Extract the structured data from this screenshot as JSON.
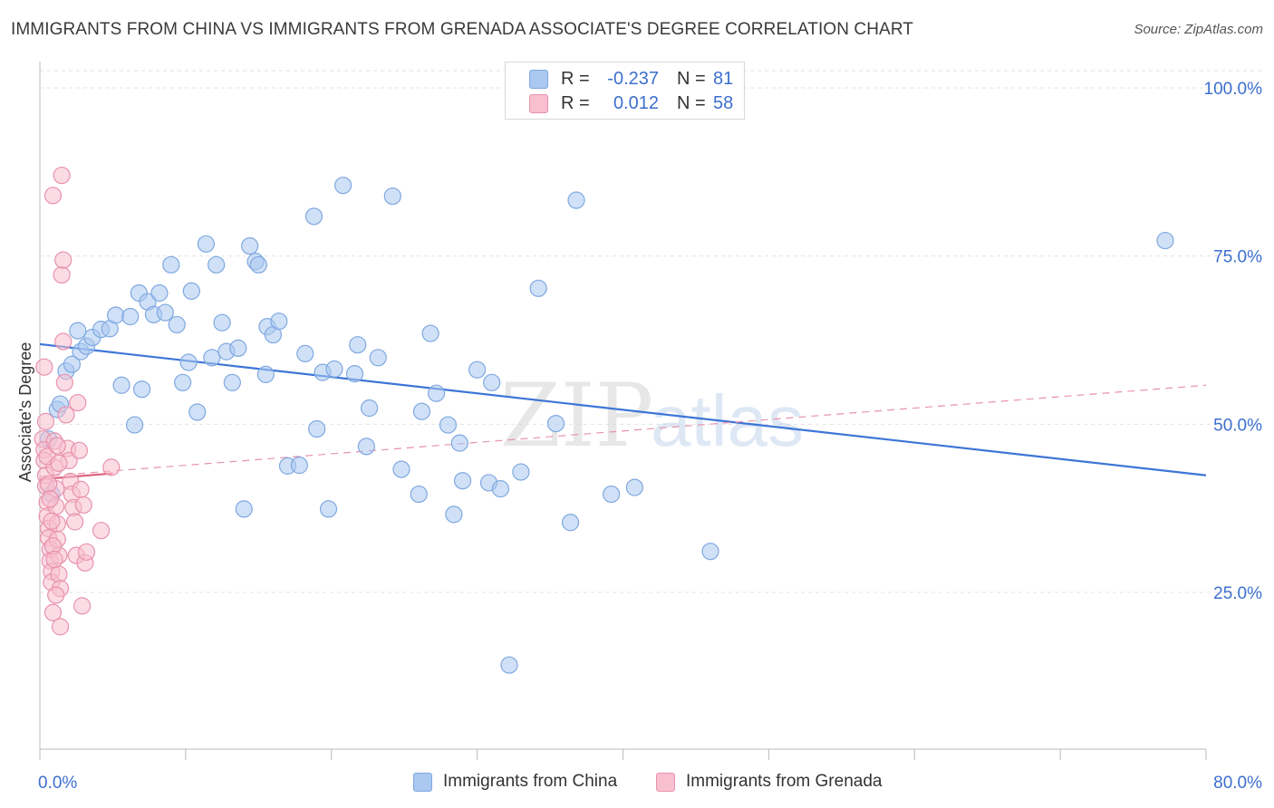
{
  "title": "IMMIGRANTS FROM CHINA VS IMMIGRANTS FROM GRENADA ASSOCIATE'S DEGREE CORRELATION CHART",
  "source": "Source: ZipAtlas.com",
  "watermark": {
    "zip": "ZIP",
    "atlas": "atlas"
  },
  "legend": {
    "rows": [
      {
        "r_label": "R =",
        "r_value": "-0.237",
        "n_label": "N =",
        "n_value": "81",
        "color": "#aac8f0",
        "border": "#7fa8e0"
      },
      {
        "r_label": "R =",
        "r_value": "0.012",
        "n_label": "N =",
        "n_value": "58",
        "color": "#f8bfd0",
        "border": "#e892ad"
      }
    ]
  },
  "bottom_legend": {
    "items": [
      {
        "label": "Immigrants from China",
        "color": "#aac8f0",
        "border": "#7fa8e0"
      },
      {
        "label": "Immigrants from Grenada",
        "color": "#f8bfd0",
        "border": "#e892ad"
      }
    ]
  },
  "chart_data": {
    "type": "scatter",
    "title": "IMMIGRANTS FROM CHINA VS IMMIGRANTS FROM GRENADA ASSOCIATE'S DEGREE CORRELATION CHART",
    "xlabel": "",
    "ylabel": "Associate's Degree",
    "xlim": [
      0,
      80
    ],
    "ylim": [
      0,
      105
    ],
    "x_tick_labels": [
      {
        "value": 0,
        "label": "0.0%"
      },
      {
        "value": 80,
        "label": "80.0%"
      }
    ],
    "y_tick_labels": [
      {
        "value": 100,
        "label": "100.0%"
      },
      {
        "value": 75,
        "label": "75.0%"
      },
      {
        "value": 50,
        "label": "50.0%"
      },
      {
        "value": 25,
        "label": "25.0%"
      }
    ],
    "grid": true,
    "series": [
      {
        "name": "Immigrants from China",
        "color": "#aac8f0",
        "stroke": "#7fa8e0",
        "trend": {
          "x": [
            0,
            80
          ],
          "y": [
            61.9,
            42.4
          ],
          "color": "#3d75d6",
          "style": "solid"
        },
        "points": [
          [
            0.6,
            47.8
          ],
          [
            0.8,
            39.6
          ],
          [
            1.2,
            52.2
          ],
          [
            1.4,
            53.0
          ],
          [
            1.8,
            57.9
          ],
          [
            2.2,
            58.9
          ],
          [
            2.6,
            63.9
          ],
          [
            2.8,
            60.8
          ],
          [
            3.2,
            61.6
          ],
          [
            3.6,
            62.9
          ],
          [
            4.2,
            64.1
          ],
          [
            4.8,
            64.2
          ],
          [
            5.2,
            66.2
          ],
          [
            5.6,
            55.8
          ],
          [
            6.2,
            66.0
          ],
          [
            6.5,
            49.9
          ],
          [
            6.8,
            69.5
          ],
          [
            7.0,
            55.2
          ],
          [
            7.4,
            68.2
          ],
          [
            7.8,
            66.3
          ],
          [
            8.2,
            69.5
          ],
          [
            8.6,
            66.6
          ],
          [
            9.0,
            73.7
          ],
          [
            9.4,
            64.8
          ],
          [
            9.8,
            56.2
          ],
          [
            10.2,
            59.2
          ],
          [
            10.4,
            69.8
          ],
          [
            10.8,
            51.8
          ],
          [
            11.4,
            76.8
          ],
          [
            11.8,
            59.9
          ],
          [
            12.1,
            73.7
          ],
          [
            12.5,
            65.1
          ],
          [
            12.8,
            60.8
          ],
          [
            13.2,
            56.2
          ],
          [
            13.6,
            61.3
          ],
          [
            14.0,
            37.4
          ],
          [
            14.4,
            76.5
          ],
          [
            14.8,
            74.2
          ],
          [
            15.0,
            73.7
          ],
          [
            15.5,
            57.4
          ],
          [
            15.6,
            64.5
          ],
          [
            16.0,
            63.3
          ],
          [
            16.4,
            65.3
          ],
          [
            17.0,
            43.8
          ],
          [
            17.8,
            43.9
          ],
          [
            18.2,
            60.5
          ],
          [
            18.8,
            80.9
          ],
          [
            19.0,
            49.3
          ],
          [
            19.4,
            57.7
          ],
          [
            19.8,
            37.4
          ],
          [
            20.2,
            58.2
          ],
          [
            20.8,
            85.5
          ],
          [
            21.6,
            57.5
          ],
          [
            21.8,
            61.8
          ],
          [
            22.6,
            52.4
          ],
          [
            22.4,
            46.7
          ],
          [
            23.2,
            59.9
          ],
          [
            24.2,
            83.9
          ],
          [
            24.8,
            43.3
          ],
          [
            26.0,
            39.6
          ],
          [
            26.2,
            51.9
          ],
          [
            26.8,
            63.5
          ],
          [
            27.2,
            54.6
          ],
          [
            28.0,
            49.9
          ],
          [
            28.4,
            36.6
          ],
          [
            28.8,
            47.2
          ],
          [
            29.0,
            41.6
          ],
          [
            30.0,
            58.1
          ],
          [
            30.8,
            41.3
          ],
          [
            31.0,
            56.2
          ],
          [
            31.6,
            40.4
          ],
          [
            32.2,
            14.2
          ],
          [
            33.0,
            42.9
          ],
          [
            34.2,
            70.2
          ],
          [
            35.4,
            50.1
          ],
          [
            36.4,
            35.4
          ],
          [
            36.8,
            83.3
          ],
          [
            39.2,
            39.6
          ],
          [
            40.8,
            40.6
          ],
          [
            46.0,
            31.1
          ],
          [
            77.2,
            77.3
          ]
        ]
      },
      {
        "name": "Immigrants from Grenada",
        "color": "#f8bfd0",
        "stroke": "#e892ad",
        "trend_solid": {
          "x": [
            0,
            5
          ],
          "y": [
            41.8,
            42.7
          ],
          "color": "#e0607e",
          "style": "solid"
        },
        "trend": {
          "x": [
            0,
            80
          ],
          "y": [
            42.2,
            55.8
          ],
          "color": "#e892ad",
          "style": "dashed"
        },
        "points": [
          [
            0.2,
            47.8
          ],
          [
            0.3,
            46.2
          ],
          [
            0.3,
            44.6
          ],
          [
            0.4,
            42.4
          ],
          [
            0.4,
            40.8
          ],
          [
            0.5,
            38.4
          ],
          [
            0.5,
            36.3
          ],
          [
            0.6,
            34.5
          ],
          [
            0.6,
            33.1
          ],
          [
            0.7,
            31.4
          ],
          [
            0.7,
            29.7
          ],
          [
            0.8,
            28.1
          ],
          [
            0.8,
            26.5
          ],
          [
            0.9,
            22.0
          ],
          [
            0.9,
            84.0
          ],
          [
            1.0,
            47.5
          ],
          [
            1.0,
            43.6
          ],
          [
            1.1,
            40.4
          ],
          [
            1.1,
            37.8
          ],
          [
            1.2,
            35.2
          ],
          [
            1.2,
            32.9
          ],
          [
            1.3,
            30.5
          ],
          [
            1.3,
            27.7
          ],
          [
            1.4,
            25.6
          ],
          [
            1.4,
            19.9
          ],
          [
            1.5,
            87.0
          ],
          [
            1.5,
            72.2
          ],
          [
            1.6,
            74.4
          ],
          [
            1.6,
            62.3
          ],
          [
            1.7,
            56.2
          ],
          [
            1.8,
            51.4
          ],
          [
            1.9,
            46.4
          ],
          [
            2.0,
            44.6
          ],
          [
            2.1,
            41.5
          ],
          [
            2.2,
            39.6
          ],
          [
            2.3,
            37.6
          ],
          [
            2.4,
            35.5
          ],
          [
            2.5,
            30.5
          ],
          [
            2.6,
            53.2
          ],
          [
            2.7,
            46.1
          ],
          [
            2.8,
            40.3
          ],
          [
            2.9,
            23.0
          ],
          [
            3.0,
            38.0
          ],
          [
            3.1,
            29.4
          ],
          [
            3.2,
            31.0
          ],
          [
            4.2,
            34.2
          ],
          [
            4.9,
            43.6
          ],
          [
            0.3,
            58.5
          ],
          [
            0.4,
            50.4
          ],
          [
            0.5,
            45.2
          ],
          [
            0.6,
            41.1
          ],
          [
            0.7,
            38.9
          ],
          [
            0.8,
            35.6
          ],
          [
            0.9,
            31.9
          ],
          [
            1.0,
            29.9
          ],
          [
            1.1,
            24.6
          ],
          [
            1.2,
            46.8
          ],
          [
            1.3,
            44.2
          ]
        ]
      }
    ]
  }
}
